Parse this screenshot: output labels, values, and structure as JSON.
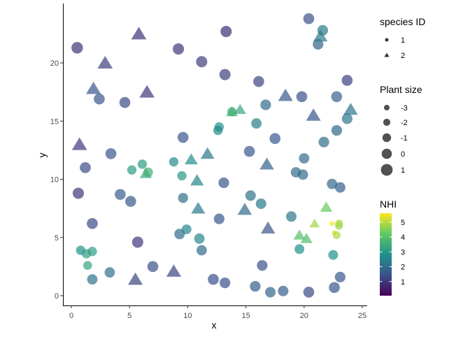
{
  "chart_data": {
    "type": "scatter",
    "xlabel": "x",
    "ylabel": "y",
    "xlim": [
      -0.7,
      25
    ],
    "ylim": [
      -0.9,
      25
    ],
    "xticks": [
      0,
      5,
      10,
      15,
      20,
      25
    ],
    "yticks": [
      0,
      5,
      10,
      15,
      20
    ],
    "grid": false,
    "point_alpha": 0.7,
    "fields": [
      "x",
      "y",
      "species",
      "plant_size",
      "NHI"
    ],
    "points": [
      [
        0.5,
        21.3,
        1,
        1,
        0.9
      ],
      [
        9.2,
        21.2,
        1,
        0.8,
        1.0
      ],
      [
        13.3,
        22.7,
        1,
        0.8,
        0.8
      ],
      [
        11.2,
        20.1,
        1,
        0.8,
        1.1
      ],
      [
        13.2,
        19.0,
        1,
        0.8,
        1.1
      ],
      [
        2.4,
        16.9,
        1,
        0.6,
        1.5
      ],
      [
        4.6,
        16.6,
        1,
        0.6,
        1.3
      ],
      [
        16.1,
        18.4,
        1,
        0.6,
        1.2
      ],
      [
        19.8,
        17.1,
        1,
        0.6,
        1.4
      ],
      [
        23.7,
        18.5,
        1,
        0.6,
        1.1
      ],
      [
        22.8,
        17.1,
        1,
        0.6,
        1.8
      ],
      [
        20.4,
        23.8,
        1,
        0.6,
        1.4
      ],
      [
        21.6,
        22.8,
        1,
        0.4,
        2.3
      ],
      [
        21.2,
        21.6,
        1,
        0.4,
        1.9
      ],
      [
        16.7,
        16.4,
        1,
        0.4,
        2.0
      ],
      [
        13.8,
        15.8,
        1,
        -0.5,
        3.4
      ],
      [
        12.7,
        14.5,
        1,
        -0.5,
        2.8
      ],
      [
        12.6,
        14.2,
        1,
        -0.5,
        2.6
      ],
      [
        15.9,
        14.8,
        1,
        0.2,
        2.4
      ],
      [
        17.5,
        13.5,
        1,
        0.6,
        1.6
      ],
      [
        15.3,
        12.4,
        1,
        0.6,
        1.6
      ],
      [
        21.7,
        13.2,
        1,
        0.4,
        2.0
      ],
      [
        22.8,
        14.2,
        1,
        0.4,
        1.9
      ],
      [
        23.7,
        15.2,
        1,
        0.4,
        2.2
      ],
      [
        9.6,
        13.6,
        1,
        0.6,
        1.5
      ],
      [
        3.4,
        12.2,
        1,
        0.6,
        1.5
      ],
      [
        1.2,
        11.0,
        1,
        0.6,
        1.3
      ],
      [
        0.6,
        8.8,
        1,
        0.8,
        1.0
      ],
      [
        4.2,
        8.7,
        1,
        0.6,
        1.7
      ],
      [
        5.1,
        8.1,
        1,
        0.6,
        1.6
      ],
      [
        1.8,
        6.2,
        1,
        0.6,
        1.3
      ],
      [
        5.7,
        4.6,
        1,
        0.8,
        1.0
      ],
      [
        0.8,
        3.9,
        1,
        -0.5,
        2.8
      ],
      [
        1.3,
        3.6,
        1,
        -0.5,
        3.2
      ],
      [
        1.8,
        3.8,
        1,
        -0.5,
        3.1
      ],
      [
        1.4,
        2.6,
        1,
        -0.8,
        3.3
      ],
      [
        1.8,
        1.4,
        1,
        0.2,
        2.1
      ],
      [
        3.3,
        2.0,
        1,
        0.2,
        2.1
      ],
      [
        7.0,
        2.5,
        1,
        0.6,
        1.4
      ],
      [
        12.2,
        1.4,
        1,
        0.6,
        1.4
      ],
      [
        5.2,
        10.8,
        1,
        -0.5,
        3.1
      ],
      [
        6.1,
        11.3,
        1,
        -0.5,
        3.1
      ],
      [
        6.6,
        10.6,
        1,
        -0.3,
        3.6
      ],
      [
        8.8,
        11.5,
        1,
        -0.5,
        2.7
      ],
      [
        9.5,
        10.3,
        1,
        -0.5,
        3.0
      ],
      [
        9.6,
        8.4,
        1,
        0.0,
        2.1
      ],
      [
        9.9,
        5.7,
        1,
        -0.2,
        2.6
      ],
      [
        9.3,
        5.3,
        1,
        0.3,
        2.0
      ],
      [
        11.0,
        4.9,
        1,
        0.2,
        2.6
      ],
      [
        11.2,
        3.9,
        1,
        0.2,
        2.0
      ],
      [
        15.4,
        8.6,
        1,
        0.3,
        2.1
      ],
      [
        16.3,
        7.9,
        1,
        0.3,
        2.3
      ],
      [
        13.1,
        9.7,
        1,
        0.4,
        1.5
      ],
      [
        12.7,
        6.6,
        1,
        0.4,
        1.6
      ],
      [
        18.9,
        6.8,
        1,
        0.3,
        2.2
      ],
      [
        19.6,
        4.0,
        1,
        -0.2,
        2.8
      ],
      [
        22.5,
        3.5,
        1,
        -0.2,
        2.8
      ],
      [
        16.4,
        2.6,
        1,
        0.4,
        1.4
      ],
      [
        13.2,
        1.1,
        1,
        0.4,
        1.4
      ],
      [
        15.8,
        0.8,
        1,
        0.4,
        1.7
      ],
      [
        17.1,
        0.3,
        1,
        0.3,
        1.9
      ],
      [
        18.2,
        0.4,
        1,
        0.3,
        1.7
      ],
      [
        20.4,
        0.3,
        1,
        0.6,
        1.3
      ],
      [
        22.6,
        0.7,
        1,
        0.6,
        1.5
      ],
      [
        23.1,
        1.6,
        1,
        0.4,
        1.6
      ],
      [
        20.0,
        11.8,
        1,
        0.2,
        2.0
      ],
      [
        19.3,
        10.6,
        1,
        0.2,
        2.0
      ],
      [
        19.9,
        10.4,
        1,
        0.2,
        2.0
      ],
      [
        22.4,
        9.6,
        1,
        0.2,
        1.9
      ],
      [
        23.1,
        9.3,
        1,
        0.3,
        1.7
      ],
      [
        22.4,
        6.2,
        1,
        -3.5,
        5.5
      ],
      [
        23.0,
        6.2,
        1,
        -1.5,
        4.9
      ],
      [
        23.0,
        6.0,
        1,
        -1.5,
        4.8
      ],
      [
        22.6,
        5.4,
        1,
        -3.5,
        5.3
      ],
      [
        22.8,
        5.2,
        1,
        -1.5,
        4.9
      ],
      [
        5.8,
        22.5,
        2,
        0.8,
        0.9
      ],
      [
        2.9,
        20.0,
        2,
        0.8,
        1.1
      ],
      [
        1.9,
        17.8,
        2,
        0.6,
        1.5
      ],
      [
        6.5,
        17.5,
        2,
        0.8,
        1.0
      ],
      [
        0.7,
        13.0,
        2,
        0.8,
        1.0
      ],
      [
        21.4,
        22.3,
        2,
        0.4,
        2.3
      ],
      [
        18.4,
        17.2,
        2,
        0.6,
        1.6
      ],
      [
        20.8,
        15.5,
        2,
        0.6,
        1.6
      ],
      [
        24.0,
        16.0,
        2,
        0.4,
        2.2
      ],
      [
        14.5,
        16.0,
        2,
        -0.8,
        3.4
      ],
      [
        13.8,
        15.8,
        2,
        -0.8,
        3.6
      ],
      [
        6.4,
        10.5,
        2,
        -0.6,
        3.5
      ],
      [
        10.3,
        11.7,
        2,
        -0.2,
        2.8
      ],
      [
        11.7,
        12.2,
        2,
        0.2,
        2.2
      ],
      [
        10.8,
        9.9,
        2,
        0.0,
        2.6
      ],
      [
        10.9,
        7.5,
        2,
        0.2,
        2.3
      ],
      [
        14.9,
        7.4,
        2,
        0.4,
        2.0
      ],
      [
        16.8,
        11.3,
        2,
        0.4,
        1.8
      ],
      [
        16.9,
        5.8,
        2,
        0.4,
        1.5
      ],
      [
        8.8,
        2.1,
        2,
        0.6,
        1.2
      ],
      [
        5.5,
        1.4,
        2,
        0.6,
        1.2
      ],
      [
        21.9,
        7.6,
        2,
        -0.6,
        4.3
      ],
      [
        20.9,
        6.2,
        2,
        -1.5,
        4.8
      ],
      [
        19.6,
        5.2,
        2,
        -0.8,
        4.0
      ],
      [
        20.2,
        4.9,
        2,
        -0.8,
        3.9
      ]
    ],
    "legend": {
      "position": "right",
      "shape": {
        "title": "species ID",
        "items": [
          "1",
          "2"
        ]
      },
      "size": {
        "title": "Plant size",
        "items": [
          "-3",
          "-2",
          "-1",
          "0",
          "1"
        ],
        "values": [
          -3,
          -2,
          -1,
          0,
          1
        ]
      },
      "color": {
        "title": "NHI",
        "ticks": [
          "1",
          "2",
          "3",
          "4",
          "5"
        ],
        "tick_values": [
          1,
          2,
          3,
          4,
          5
        ],
        "range": [
          0.05,
          5.6
        ],
        "palette": "viridis",
        "stops": [
          "#440154",
          "#3b528b",
          "#21918c",
          "#5ec962",
          "#fde725"
        ]
      }
    }
  }
}
